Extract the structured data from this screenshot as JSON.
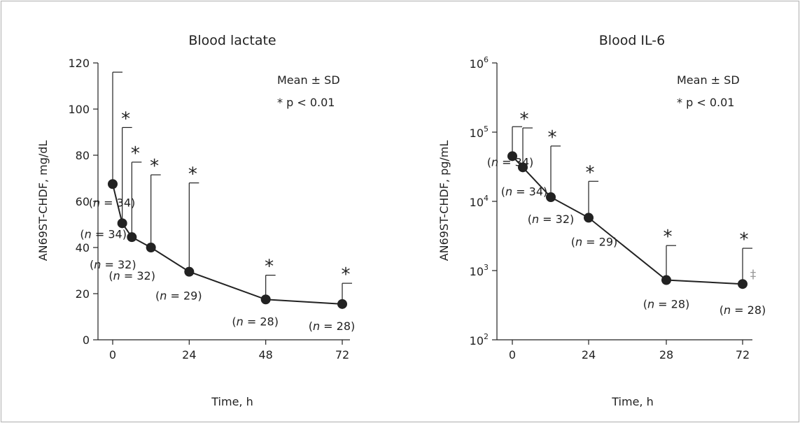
{
  "chart_data": [
    {
      "type": "line",
      "title": "Blood lactate",
      "xlabel": "Time, h",
      "ylabel": "AN69ST-CHDF, mg/dL",
      "ylim": [
        0,
        120
      ],
      "y_ticks": [
        0,
        20,
        40,
        60,
        80,
        100,
        120
      ],
      "x_ticks": [
        "0",
        "24",
        "48",
        "72"
      ],
      "legend_lines": [
        "Mean ± SD",
        "* p < 0.01"
      ],
      "points": [
        {
          "x": 0,
          "y": 67.5,
          "sd_upper": 116,
          "n_label": "(n = 34)",
          "star": false
        },
        {
          "x": 3,
          "y": 50.5,
          "sd_upper": 92,
          "n_label": "(n = 34)",
          "star": true
        },
        {
          "x": 6,
          "y": 44.5,
          "sd_upper": 77,
          "n_label": "(n = 32)",
          "star": true
        },
        {
          "x": 12,
          "y": 40,
          "sd_upper": 71.5,
          "n_label": "(n = 32)",
          "star": true
        },
        {
          "x": 24,
          "y": 29.5,
          "sd_upper": 68,
          "n_label": "(n = 29)",
          "star": true
        },
        {
          "x": 48,
          "y": 17.5,
          "sd_upper": 28,
          "n_label": "(n = 28)",
          "star": true
        },
        {
          "x": 72,
          "y": 15.5,
          "sd_upper": 24.5,
          "n_label": "(n = 28)",
          "star": true
        }
      ]
    },
    {
      "type": "line",
      "title": "Blood IL-6",
      "xlabel": "Time, h",
      "ylabel": "AN69ST-CHDF, pg/mL",
      "y_scale": "log",
      "ylim": [
        100,
        1000000
      ],
      "y_ticks": [
        {
          "base": "10",
          "exp": "2"
        },
        {
          "base": "10",
          "exp": "3"
        },
        {
          "base": "10",
          "exp": "4"
        },
        {
          "base": "10",
          "exp": "5"
        },
        {
          "base": "10",
          "exp": "6"
        }
      ],
      "x_ticks": [
        "0",
        "24",
        "28",
        "72"
      ],
      "legend_lines": [
        "Mean ± SD",
        "* p < 0.01"
      ],
      "dagger": "‡",
      "points": [
        {
          "x": "0",
          "y": 45000,
          "sd_upper": 120000,
          "n_label": "(n = 34)",
          "star": false
        },
        {
          "x": "3",
          "y": 31000,
          "sd_upper": 115000,
          "n_label": "(n = 34)",
          "star": true
        },
        {
          "x": "12",
          "y": 11500,
          "sd_upper": 63000,
          "n_label": "(n = 32)",
          "star": true
        },
        {
          "x": "24",
          "y": 5800,
          "sd_upper": 19500,
          "n_label": "(n = 29)",
          "star": true
        },
        {
          "x": "28",
          "y": 730,
          "sd_upper": 2300,
          "n_label": "(n = 28)",
          "star": true
        },
        {
          "x": "72",
          "y": 640,
          "sd_upper": 2100,
          "n_label": "(n = 28)",
          "star": true
        }
      ]
    }
  ]
}
